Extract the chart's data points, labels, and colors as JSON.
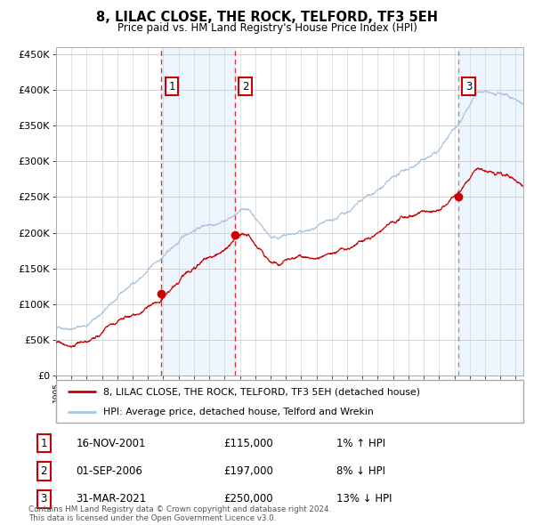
{
  "title": "8, LILAC CLOSE, THE ROCK, TELFORD, TF3 5EH",
  "subtitle": "Price paid vs. HM Land Registry's House Price Index (HPI)",
  "sales": [
    {
      "date": "2001-11-16",
      "price": 115000,
      "label": "1"
    },
    {
      "date": "2006-09-01",
      "price": 197000,
      "label": "2"
    },
    {
      "date": "2021-03-31",
      "price": 250000,
      "label": "3"
    }
  ],
  "legend_property": "8, LILAC CLOSE, THE ROCK, TELFORD, TF3 5EH (detached house)",
  "legend_hpi": "HPI: Average price, detached house, Telford and Wrekin",
  "table_rows": [
    {
      "num": "1",
      "date": "16-NOV-2001",
      "price": "£115,000",
      "hpi": "1% ↑ HPI"
    },
    {
      "num": "2",
      "date": "01-SEP-2006",
      "price": "£197,000",
      "hpi": "8% ↓ HPI"
    },
    {
      "num": "3",
      "date": "31-MAR-2021",
      "price": "£250,000",
      "hpi": "13% ↓ HPI"
    }
  ],
  "footer": "Contains HM Land Registry data © Crown copyright and database right 2024.\nThis data is licensed under the Open Government Licence v3.0.",
  "hpi_color": "#a8c4e0",
  "property_color": "#cc0000",
  "dashed_red_color": "#dd3333",
  "dashed_gray_color": "#999999",
  "shade_color": "#ddeeff",
  "background_color": "#ffffff",
  "grid_color": "#cccccc",
  "start_year": 1995.0,
  "end_year": 2025.5
}
